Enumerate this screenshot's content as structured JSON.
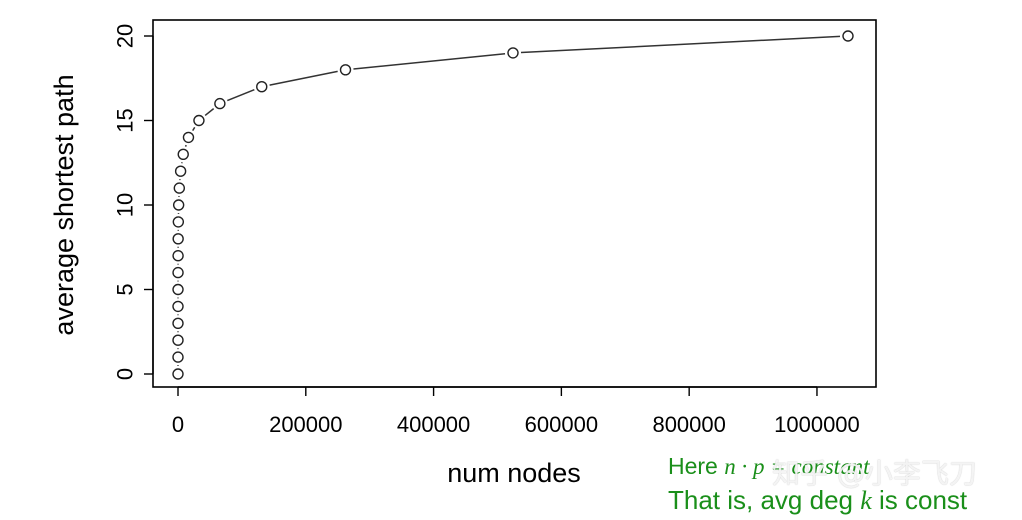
{
  "chart_data": {
    "type": "line",
    "xlabel": "num nodes",
    "ylabel": "average shortest path",
    "xlim": [
      0,
      1048576
    ],
    "ylim": [
      0,
      20
    ],
    "x_ticks": [
      "0",
      "200000",
      "400000",
      "600000",
      "800000",
      "1000000"
    ],
    "x_tick_values": [
      0,
      200000,
      400000,
      600000,
      800000,
      1000000
    ],
    "y_ticks": [
      "0",
      "5",
      "10",
      "15",
      "20"
    ],
    "y_tick_values": [
      0,
      5,
      10,
      15,
      20
    ],
    "x": [
      1,
      2,
      4,
      8,
      16,
      32,
      64,
      128,
      256,
      512,
      1024,
      2048,
      4096,
      8192,
      16384,
      32768,
      65536,
      131072,
      262144,
      524288,
      1048576
    ],
    "y": [
      0,
      1,
      2,
      3,
      4,
      5,
      6,
      7,
      8,
      9,
      10,
      11,
      12,
      13,
      14,
      15,
      16,
      17,
      18,
      19,
      20
    ],
    "marker": "open-circle",
    "grid": false
  },
  "annotation": {
    "line1_prefix": "Here ",
    "line1_math": "n · p = constant",
    "line2_prefix": "That is, avg deg ",
    "line2_math": "k",
    "line2_suffix": " is const",
    "color": "#1a8f1a"
  },
  "watermark": "知乎 @小李飞刀"
}
